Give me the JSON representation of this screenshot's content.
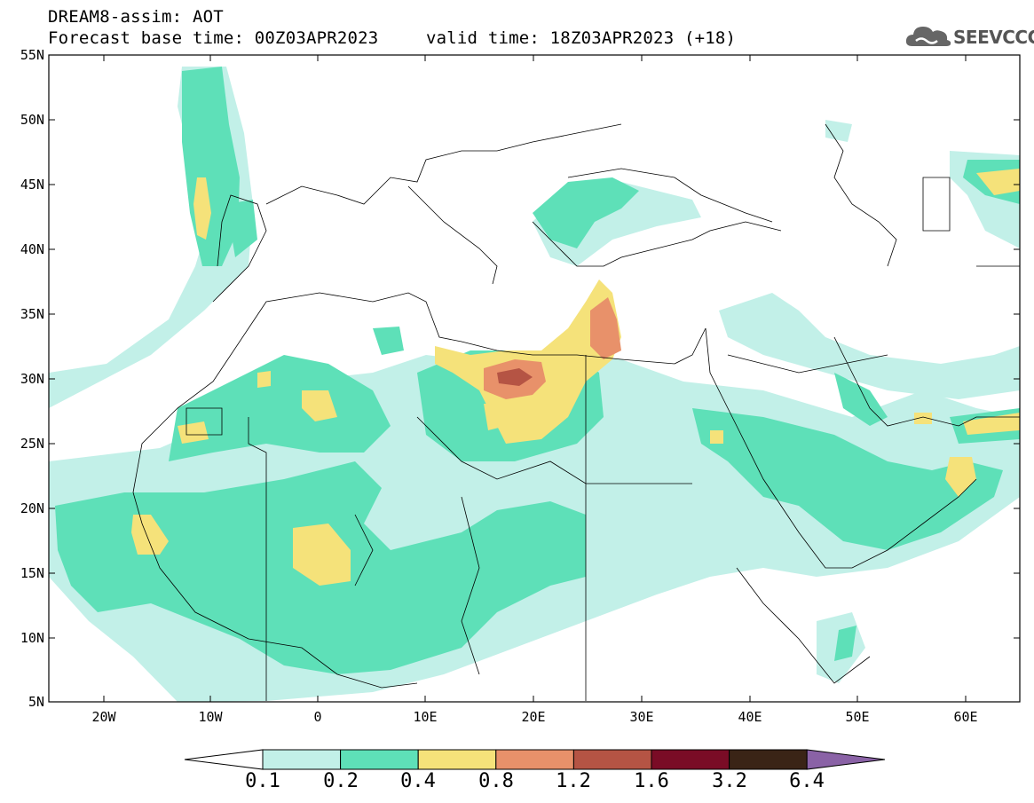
{
  "title": {
    "line1": "DREAM8-assim: AOT",
    "base_time": "Forecast base time: 00Z03APR2023",
    "valid_time": "valid time: 18Z03APR2023 (+18)"
  },
  "logo": {
    "text": "SEEVCCC",
    "icon": "cloud-icon"
  },
  "axes": {
    "lat_ticks": [
      "55N",
      "50N",
      "45N",
      "40N",
      "35N",
      "30N",
      "25N",
      "20N",
      "15N",
      "10N",
      "5N"
    ],
    "lon_ticks": [
      "20W",
      "10W",
      "0",
      "10E",
      "20E",
      "30E",
      "40E",
      "50E",
      "60E"
    ]
  },
  "colorbar": {
    "labels": [
      "0.1",
      "0.2",
      "0.4",
      "0.8",
      "1.2",
      "1.6",
      "3.2",
      "6.4"
    ],
    "colors": [
      "#ffffff",
      "#c2f0e8",
      "#5ee0b8",
      "#f5e27a",
      "#e8916a",
      "#b55444",
      "#7a0c26",
      "#3a2416",
      "#8a62a6"
    ]
  }
}
